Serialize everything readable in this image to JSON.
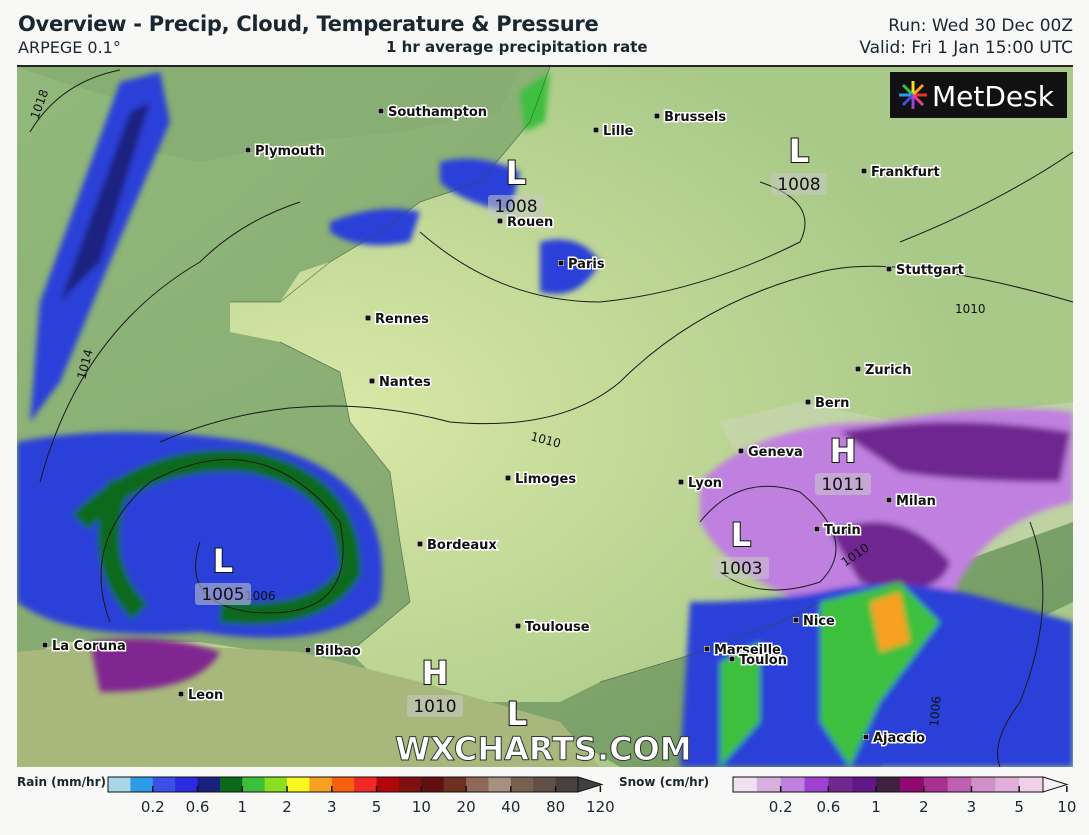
{
  "header": {
    "title": "Overview - Precip, Cloud, Temperature & Pressure",
    "model": "ARPEGE 0.1°",
    "subtitle": "1 hr average precipitation rate",
    "run": "Run: Wed 30 Dec 00Z",
    "valid": "Valid: Fri 1 Jan 15:00 UTC"
  },
  "logo": {
    "text": "MetDesk"
  },
  "watermark": "WXCHARTS.COM",
  "cities": [
    "Southampton",
    "Plymouth",
    "Lille",
    "Brussels",
    "Frankfurt",
    "Rouen",
    "Paris",
    "Stuttgart",
    "Rennes",
    "Nantes",
    "Zurich",
    "Bern",
    "Geneva",
    "Lyon",
    "Limoges",
    "Milan",
    "Turin",
    "Bordeaux",
    "Nice",
    "Toulouse",
    "Marseille",
    "Toulon",
    "La Coruna",
    "Bilbao",
    "Leon",
    "Ajaccio"
  ],
  "pressure_centers": [
    {
      "type": "L",
      "value": "1008"
    },
    {
      "type": "L",
      "value": "1008"
    },
    {
      "type": "H",
      "value": "1011"
    },
    {
      "type": "L",
      "value": "1003"
    },
    {
      "type": "L",
      "value": "1005"
    },
    {
      "type": "H",
      "value": "1010"
    },
    {
      "type": "L",
      "value": ""
    }
  ],
  "isobar_labels": [
    "1018",
    "1014",
    "1010",
    "1010",
    "1010",
    "1006",
    "1006"
  ],
  "legend": {
    "rain": {
      "label": "Rain (mm/hr)",
      "ticks": [
        "0.2",
        "0.6",
        "1",
        "2",
        "3",
        "5",
        "10",
        "20",
        "40",
        "80",
        "120"
      ],
      "colors": [
        "#a8d8e8",
        "#2e9be8",
        "#3a50e8",
        "#2a2ae0",
        "#1a2080",
        "#0a6a1a",
        "#3cc03c",
        "#88e020",
        "#f8f820",
        "#f8a020",
        "#f86010",
        "#f02828",
        "#b00808",
        "#801010",
        "#601010",
        "#703020",
        "#906858",
        "#a89080",
        "#786050",
        "#605048",
        "#484040"
      ]
    },
    "snow": {
      "label": "Snow (cm/hr)",
      "ticks": [
        "0.2",
        "0.6",
        "1",
        "2",
        "3",
        "5",
        "10"
      ],
      "colors": [
        "#f0e0f0",
        "#d8b0e0",
        "#c080e0",
        "#a040d0",
        "#702890",
        "#601888",
        "#402040",
        "#900870",
        "#a83090",
        "#c060b0",
        "#d090c8",
        "#e0b0d8",
        "#f0d0e8"
      ]
    }
  }
}
